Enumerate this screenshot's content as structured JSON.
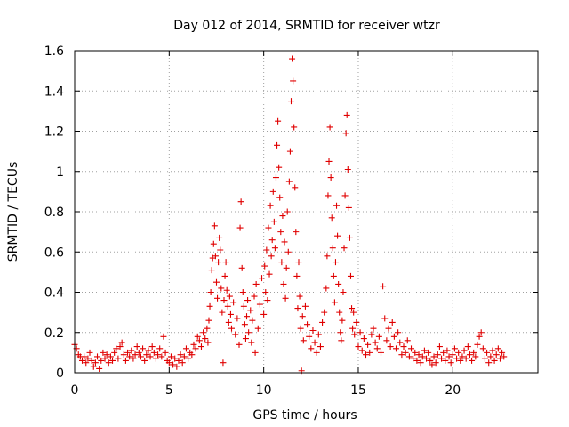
{
  "chart_data": {
    "type": "scatter",
    "title": "Day 012 of 2014, SRMTID for receiver wtzr",
    "xlabel": "GPS time / hours",
    "ylabel": "SRMTID / TECUs",
    "xlim": [
      0,
      24.5
    ],
    "ylim": [
      0,
      1.6
    ],
    "xticks": [
      0,
      5,
      10,
      15,
      20
    ],
    "xtick_labels": [
      "0",
      "5",
      "10",
      "15",
      "20"
    ],
    "yticks": [
      0,
      0.2,
      0.4,
      0.6,
      0.8,
      1.0,
      1.2,
      1.4,
      1.6
    ],
    "ytick_labels": [
      "0",
      "0.2",
      "0.4",
      "0.6",
      "0.8",
      "1",
      "1.2",
      "1.4",
      "1.6"
    ],
    "grid": true,
    "marker": "plus",
    "color": "#e00000",
    "series": [
      {
        "name": "SRMTID",
        "points": [
          [
            0.0,
            0.14
          ],
          [
            0.1,
            0.12
          ],
          [
            0.2,
            0.09
          ],
          [
            0.3,
            0.08
          ],
          [
            0.4,
            0.06
          ],
          [
            0.5,
            0.08
          ],
          [
            0.6,
            0.05
          ],
          [
            0.7,
            0.07
          ],
          [
            0.8,
            0.1
          ],
          [
            0.9,
            0.06
          ],
          [
            1.0,
            0.03
          ],
          [
            1.1,
            0.05
          ],
          [
            1.2,
            0.08
          ],
          [
            1.3,
            0.02
          ],
          [
            1.4,
            0.06
          ],
          [
            1.5,
            0.1
          ],
          [
            1.6,
            0.07
          ],
          [
            1.7,
            0.09
          ],
          [
            1.8,
            0.05
          ],
          [
            1.9,
            0.08
          ],
          [
            2.0,
            0.06
          ],
          [
            2.1,
            0.1
          ],
          [
            2.2,
            0.12
          ],
          [
            2.3,
            0.07
          ],
          [
            2.4,
            0.13
          ],
          [
            2.5,
            0.15
          ],
          [
            2.6,
            0.09
          ],
          [
            2.7,
            0.06
          ],
          [
            2.8,
            0.1
          ],
          [
            2.9,
            0.08
          ],
          [
            3.0,
            0.11
          ],
          [
            3.1,
            0.07
          ],
          [
            3.2,
            0.09
          ],
          [
            3.3,
            0.13
          ],
          [
            3.4,
            0.1
          ],
          [
            3.5,
            0.08
          ],
          [
            3.6,
            0.12
          ],
          [
            3.7,
            0.06
          ],
          [
            3.8,
            0.09
          ],
          [
            3.9,
            0.11
          ],
          [
            4.0,
            0.08
          ],
          [
            4.1,
            0.13
          ],
          [
            4.2,
            0.1
          ],
          [
            4.3,
            0.07
          ],
          [
            4.4,
            0.09
          ],
          [
            4.5,
            0.12
          ],
          [
            4.6,
            0.08
          ],
          [
            4.7,
            0.18
          ],
          [
            4.8,
            0.1
          ],
          [
            4.9,
            0.06
          ],
          [
            5.0,
            0.05
          ],
          [
            5.1,
            0.08
          ],
          [
            5.2,
            0.04
          ],
          [
            5.3,
            0.07
          ],
          [
            5.4,
            0.03
          ],
          [
            5.5,
            0.06
          ],
          [
            5.6,
            0.09
          ],
          [
            5.7,
            0.05
          ],
          [
            5.8,
            0.08
          ],
          [
            5.9,
            0.12
          ],
          [
            6.0,
            0.07
          ],
          [
            6.1,
            0.1
          ],
          [
            6.2,
            0.09
          ],
          [
            6.3,
            0.14
          ],
          [
            6.4,
            0.12
          ],
          [
            6.5,
            0.18
          ],
          [
            6.6,
            0.16
          ],
          [
            6.7,
            0.13
          ],
          [
            6.8,
            0.2
          ],
          [
            6.9,
            0.17
          ],
          [
            7.0,
            0.22
          ],
          [
            7.05,
            0.15
          ],
          [
            7.1,
            0.26
          ],
          [
            7.15,
            0.33
          ],
          [
            7.2,
            0.4
          ],
          [
            7.25,
            0.51
          ],
          [
            7.3,
            0.57
          ],
          [
            7.35,
            0.64
          ],
          [
            7.4,
            0.73
          ],
          [
            7.45,
            0.58
          ],
          [
            7.5,
            0.45
          ],
          [
            7.55,
            0.37
          ],
          [
            7.6,
            0.55
          ],
          [
            7.65,
            0.67
          ],
          [
            7.7,
            0.61
          ],
          [
            7.75,
            0.42
          ],
          [
            7.8,
            0.3
          ],
          [
            7.85,
            0.05
          ],
          [
            7.9,
            0.36
          ],
          [
            7.95,
            0.48
          ],
          [
            8.0,
            0.55
          ],
          [
            8.05,
            0.41
          ],
          [
            8.1,
            0.33
          ],
          [
            8.15,
            0.25
          ],
          [
            8.2,
            0.38
          ],
          [
            8.25,
            0.29
          ],
          [
            8.3,
            0.22
          ],
          [
            8.4,
            0.35
          ],
          [
            8.5,
            0.19
          ],
          [
            8.6,
            0.27
          ],
          [
            8.7,
            0.14
          ],
          [
            8.75,
            0.72
          ],
          [
            8.8,
            0.85
          ],
          [
            8.85,
            0.52
          ],
          [
            8.9,
            0.4
          ],
          [
            8.95,
            0.33
          ],
          [
            9.0,
            0.24
          ],
          [
            9.05,
            0.17
          ],
          [
            9.1,
            0.28
          ],
          [
            9.15,
            0.36
          ],
          [
            9.2,
            0.2
          ],
          [
            9.3,
            0.31
          ],
          [
            9.35,
            0.15
          ],
          [
            9.4,
            0.26
          ],
          [
            9.5,
            0.38
          ],
          [
            9.55,
            0.1
          ],
          [
            9.6,
            0.44
          ],
          [
            9.7,
            0.22
          ],
          [
            9.8,
            0.34
          ],
          [
            9.9,
            0.47
          ],
          [
            10.0,
            0.29
          ],
          [
            10.05,
            0.53
          ],
          [
            10.1,
            0.4
          ],
          [
            10.15,
            0.61
          ],
          [
            10.2,
            0.36
          ],
          [
            10.25,
            0.72
          ],
          [
            10.3,
            0.49
          ],
          [
            10.35,
            0.83
          ],
          [
            10.4,
            0.58
          ],
          [
            10.45,
            0.66
          ],
          [
            10.5,
            0.9
          ],
          [
            10.55,
            0.75
          ],
          [
            10.6,
            0.62
          ],
          [
            10.65,
            0.97
          ],
          [
            10.7,
            1.13
          ],
          [
            10.75,
            1.25
          ],
          [
            10.8,
            1.02
          ],
          [
            10.85,
            0.87
          ],
          [
            10.9,
            0.7
          ],
          [
            10.95,
            0.55
          ],
          [
            11.0,
            0.78
          ],
          [
            11.05,
            0.44
          ],
          [
            11.1,
            0.65
          ],
          [
            11.15,
            0.37
          ],
          [
            11.2,
            0.52
          ],
          [
            11.25,
            0.8
          ],
          [
            11.3,
            0.6
          ],
          [
            11.35,
            0.95
          ],
          [
            11.4,
            1.1
          ],
          [
            11.45,
            1.35
          ],
          [
            11.5,
            1.56
          ],
          [
            11.55,
            1.45
          ],
          [
            11.6,
            1.22
          ],
          [
            11.65,
            0.92
          ],
          [
            11.7,
            0.7
          ],
          [
            11.75,
            0.48
          ],
          [
            11.8,
            0.32
          ],
          [
            11.85,
            0.55
          ],
          [
            11.9,
            0.38
          ],
          [
            11.95,
            0.22
          ],
          [
            12.0,
            0.01
          ],
          [
            12.05,
            0.28
          ],
          [
            12.1,
            0.16
          ],
          [
            12.2,
            0.33
          ],
          [
            12.3,
            0.24
          ],
          [
            12.4,
            0.18
          ],
          [
            12.5,
            0.12
          ],
          [
            12.6,
            0.21
          ],
          [
            12.7,
            0.15
          ],
          [
            12.8,
            0.1
          ],
          [
            12.9,
            0.19
          ],
          [
            13.0,
            0.13
          ],
          [
            13.1,
            0.25
          ],
          [
            13.2,
            0.3
          ],
          [
            13.3,
            0.42
          ],
          [
            13.35,
            0.58
          ],
          [
            13.4,
            0.88
          ],
          [
            13.45,
            1.05
          ],
          [
            13.5,
            1.22
          ],
          [
            13.55,
            0.97
          ],
          [
            13.6,
            0.77
          ],
          [
            13.65,
            0.62
          ],
          [
            13.7,
            0.48
          ],
          [
            13.75,
            0.35
          ],
          [
            13.8,
            0.55
          ],
          [
            13.85,
            0.83
          ],
          [
            13.9,
            0.68
          ],
          [
            13.95,
            0.44
          ],
          [
            14.0,
            0.3
          ],
          [
            14.05,
            0.2
          ],
          [
            14.1,
            0.16
          ],
          [
            14.15,
            0.26
          ],
          [
            14.2,
            0.4
          ],
          [
            14.25,
            0.62
          ],
          [
            14.3,
            0.88
          ],
          [
            14.35,
            1.19
          ],
          [
            14.4,
            1.28
          ],
          [
            14.45,
            1.01
          ],
          [
            14.5,
            0.82
          ],
          [
            14.55,
            0.67
          ],
          [
            14.6,
            0.48
          ],
          [
            14.65,
            0.32
          ],
          [
            14.7,
            0.22
          ],
          [
            14.75,
            0.3
          ],
          [
            14.8,
            0.19
          ],
          [
            14.9,
            0.25
          ],
          [
            15.0,
            0.13
          ],
          [
            15.1,
            0.2
          ],
          [
            15.2,
            0.11
          ],
          [
            15.3,
            0.17
          ],
          [
            15.4,
            0.09
          ],
          [
            15.5,
            0.14
          ],
          [
            15.6,
            0.1
          ],
          [
            15.7,
            0.19
          ],
          [
            15.8,
            0.22
          ],
          [
            15.9,
            0.15
          ],
          [
            16.0,
            0.12
          ],
          [
            16.1,
            0.18
          ],
          [
            16.2,
            0.1
          ],
          [
            16.3,
            0.43
          ],
          [
            16.4,
            0.27
          ],
          [
            16.5,
            0.16
          ],
          [
            16.6,
            0.22
          ],
          [
            16.7,
            0.13
          ],
          [
            16.8,
            0.25
          ],
          [
            16.9,
            0.18
          ],
          [
            17.0,
            0.12
          ],
          [
            17.1,
            0.2
          ],
          [
            17.2,
            0.15
          ],
          [
            17.3,
            0.09
          ],
          [
            17.4,
            0.13
          ],
          [
            17.5,
            0.1
          ],
          [
            17.6,
            0.16
          ],
          [
            17.7,
            0.08
          ],
          [
            17.8,
            0.12
          ],
          [
            17.9,
            0.07
          ],
          [
            18.0,
            0.1
          ],
          [
            18.1,
            0.06
          ],
          [
            18.2,
            0.09
          ],
          [
            18.3,
            0.05
          ],
          [
            18.4,
            0.08
          ],
          [
            18.5,
            0.11
          ],
          [
            18.6,
            0.07
          ],
          [
            18.7,
            0.1
          ],
          [
            18.8,
            0.06
          ],
          [
            18.9,
            0.04
          ],
          [
            19.0,
            0.08
          ],
          [
            19.1,
            0.05
          ],
          [
            19.2,
            0.09
          ],
          [
            19.3,
            0.13
          ],
          [
            19.4,
            0.07
          ],
          [
            19.5,
            0.1
          ],
          [
            19.6,
            0.06
          ],
          [
            19.7,
            0.11
          ],
          [
            19.8,
            0.08
          ],
          [
            19.9,
            0.05
          ],
          [
            20.0,
            0.09
          ],
          [
            20.1,
            0.12
          ],
          [
            20.2,
            0.07
          ],
          [
            20.3,
            0.1
          ],
          [
            20.4,
            0.06
          ],
          [
            20.5,
            0.08
          ],
          [
            20.6,
            0.11
          ],
          [
            20.7,
            0.07
          ],
          [
            20.8,
            0.13
          ],
          [
            20.9,
            0.09
          ],
          [
            21.0,
            0.06
          ],
          [
            21.1,
            0.1
          ],
          [
            21.2,
            0.08
          ],
          [
            21.3,
            0.14
          ],
          [
            21.4,
            0.18
          ],
          [
            21.5,
            0.2
          ],
          [
            21.6,
            0.12
          ],
          [
            21.7,
            0.07
          ],
          [
            21.8,
            0.1
          ],
          [
            21.9,
            0.05
          ],
          [
            22.0,
            0.08
          ],
          [
            22.1,
            0.11
          ],
          [
            22.2,
            0.06
          ],
          [
            22.3,
            0.09
          ],
          [
            22.4,
            0.12
          ],
          [
            22.5,
            0.07
          ],
          [
            22.6,
            0.1
          ],
          [
            22.7,
            0.08
          ]
        ]
      }
    ]
  }
}
